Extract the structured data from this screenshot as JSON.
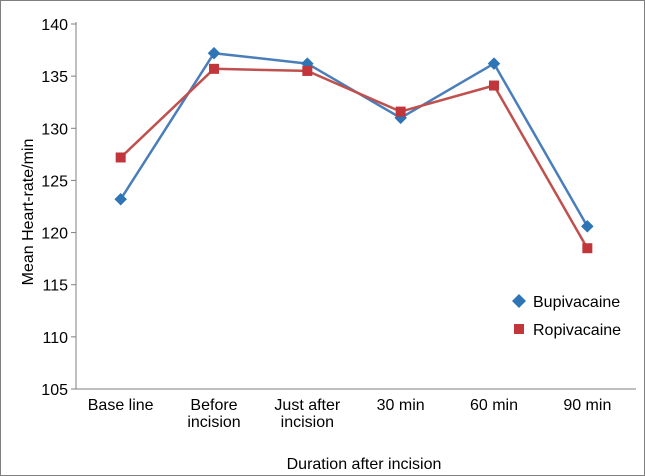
{
  "chart_data": {
    "type": "line",
    "title": "",
    "xlabel": "Duration after incision",
    "ylabel": "Mean Heart-rate/min",
    "ylim": [
      105,
      140
    ],
    "yticks": [
      105,
      110,
      115,
      120,
      125,
      130,
      135,
      140
    ],
    "categories": [
      [
        "Base line"
      ],
      [
        "Before",
        "incision"
      ],
      [
        "Just after",
        "incision"
      ],
      [
        "30 min"
      ],
      [
        "60 min"
      ],
      [
        "90 min"
      ]
    ],
    "series": [
      {
        "name": "Bupivacaine",
        "color": "#4a7ebb",
        "marker_color": "#2e75b6",
        "marker": "diamond",
        "values": [
          123.2,
          137.2,
          136.2,
          131.0,
          136.2,
          120.6
        ]
      },
      {
        "name": "Ropivacaine",
        "color": "#c0504d",
        "marker_color": "#c0363a",
        "marker": "square",
        "values": [
          127.2,
          135.7,
          135.5,
          131.6,
          134.1,
          118.5
        ]
      }
    ],
    "grid": false,
    "legend_position": "right"
  }
}
